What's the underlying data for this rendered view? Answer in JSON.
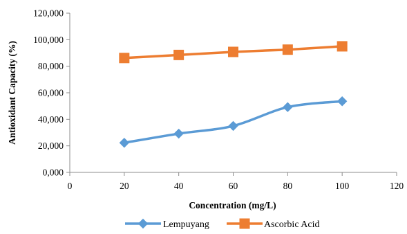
{
  "chart_data": {
    "type": "line",
    "title": "",
    "xlabel": "Concentration (mg/L)",
    "ylabel": "Antioxidant Capacity (%)",
    "xlim": [
      0,
      120
    ],
    "ylim": [
      0,
      120
    ],
    "xticks": [
      0,
      20,
      40,
      60,
      80,
      100,
      120
    ],
    "xtick_labels": [
      "0",
      "20",
      "40",
      "60",
      "80",
      "100",
      "120"
    ],
    "yticks": [
      0,
      20,
      40,
      60,
      80,
      100,
      120
    ],
    "ytick_labels": [
      "0,000",
      "20,000",
      "40,000",
      "60,000",
      "80,000",
      "100,000",
      "120,000"
    ],
    "grid": false,
    "legend_position": "bottom",
    "x": [
      20,
      40,
      60,
      80,
      100
    ],
    "series": [
      {
        "name": "Lempuyang",
        "values": [
          22.3,
          29.2,
          35.0,
          49.2,
          53.6
        ],
        "color": "#5B9BD5",
        "marker": "diamond",
        "smooth": true
      },
      {
        "name": "Ascorbic Acid",
        "values": [
          86.2,
          88.5,
          90.8,
          92.5,
          95.0
        ],
        "color": "#ED7D31",
        "marker": "square",
        "smooth": false
      }
    ]
  }
}
